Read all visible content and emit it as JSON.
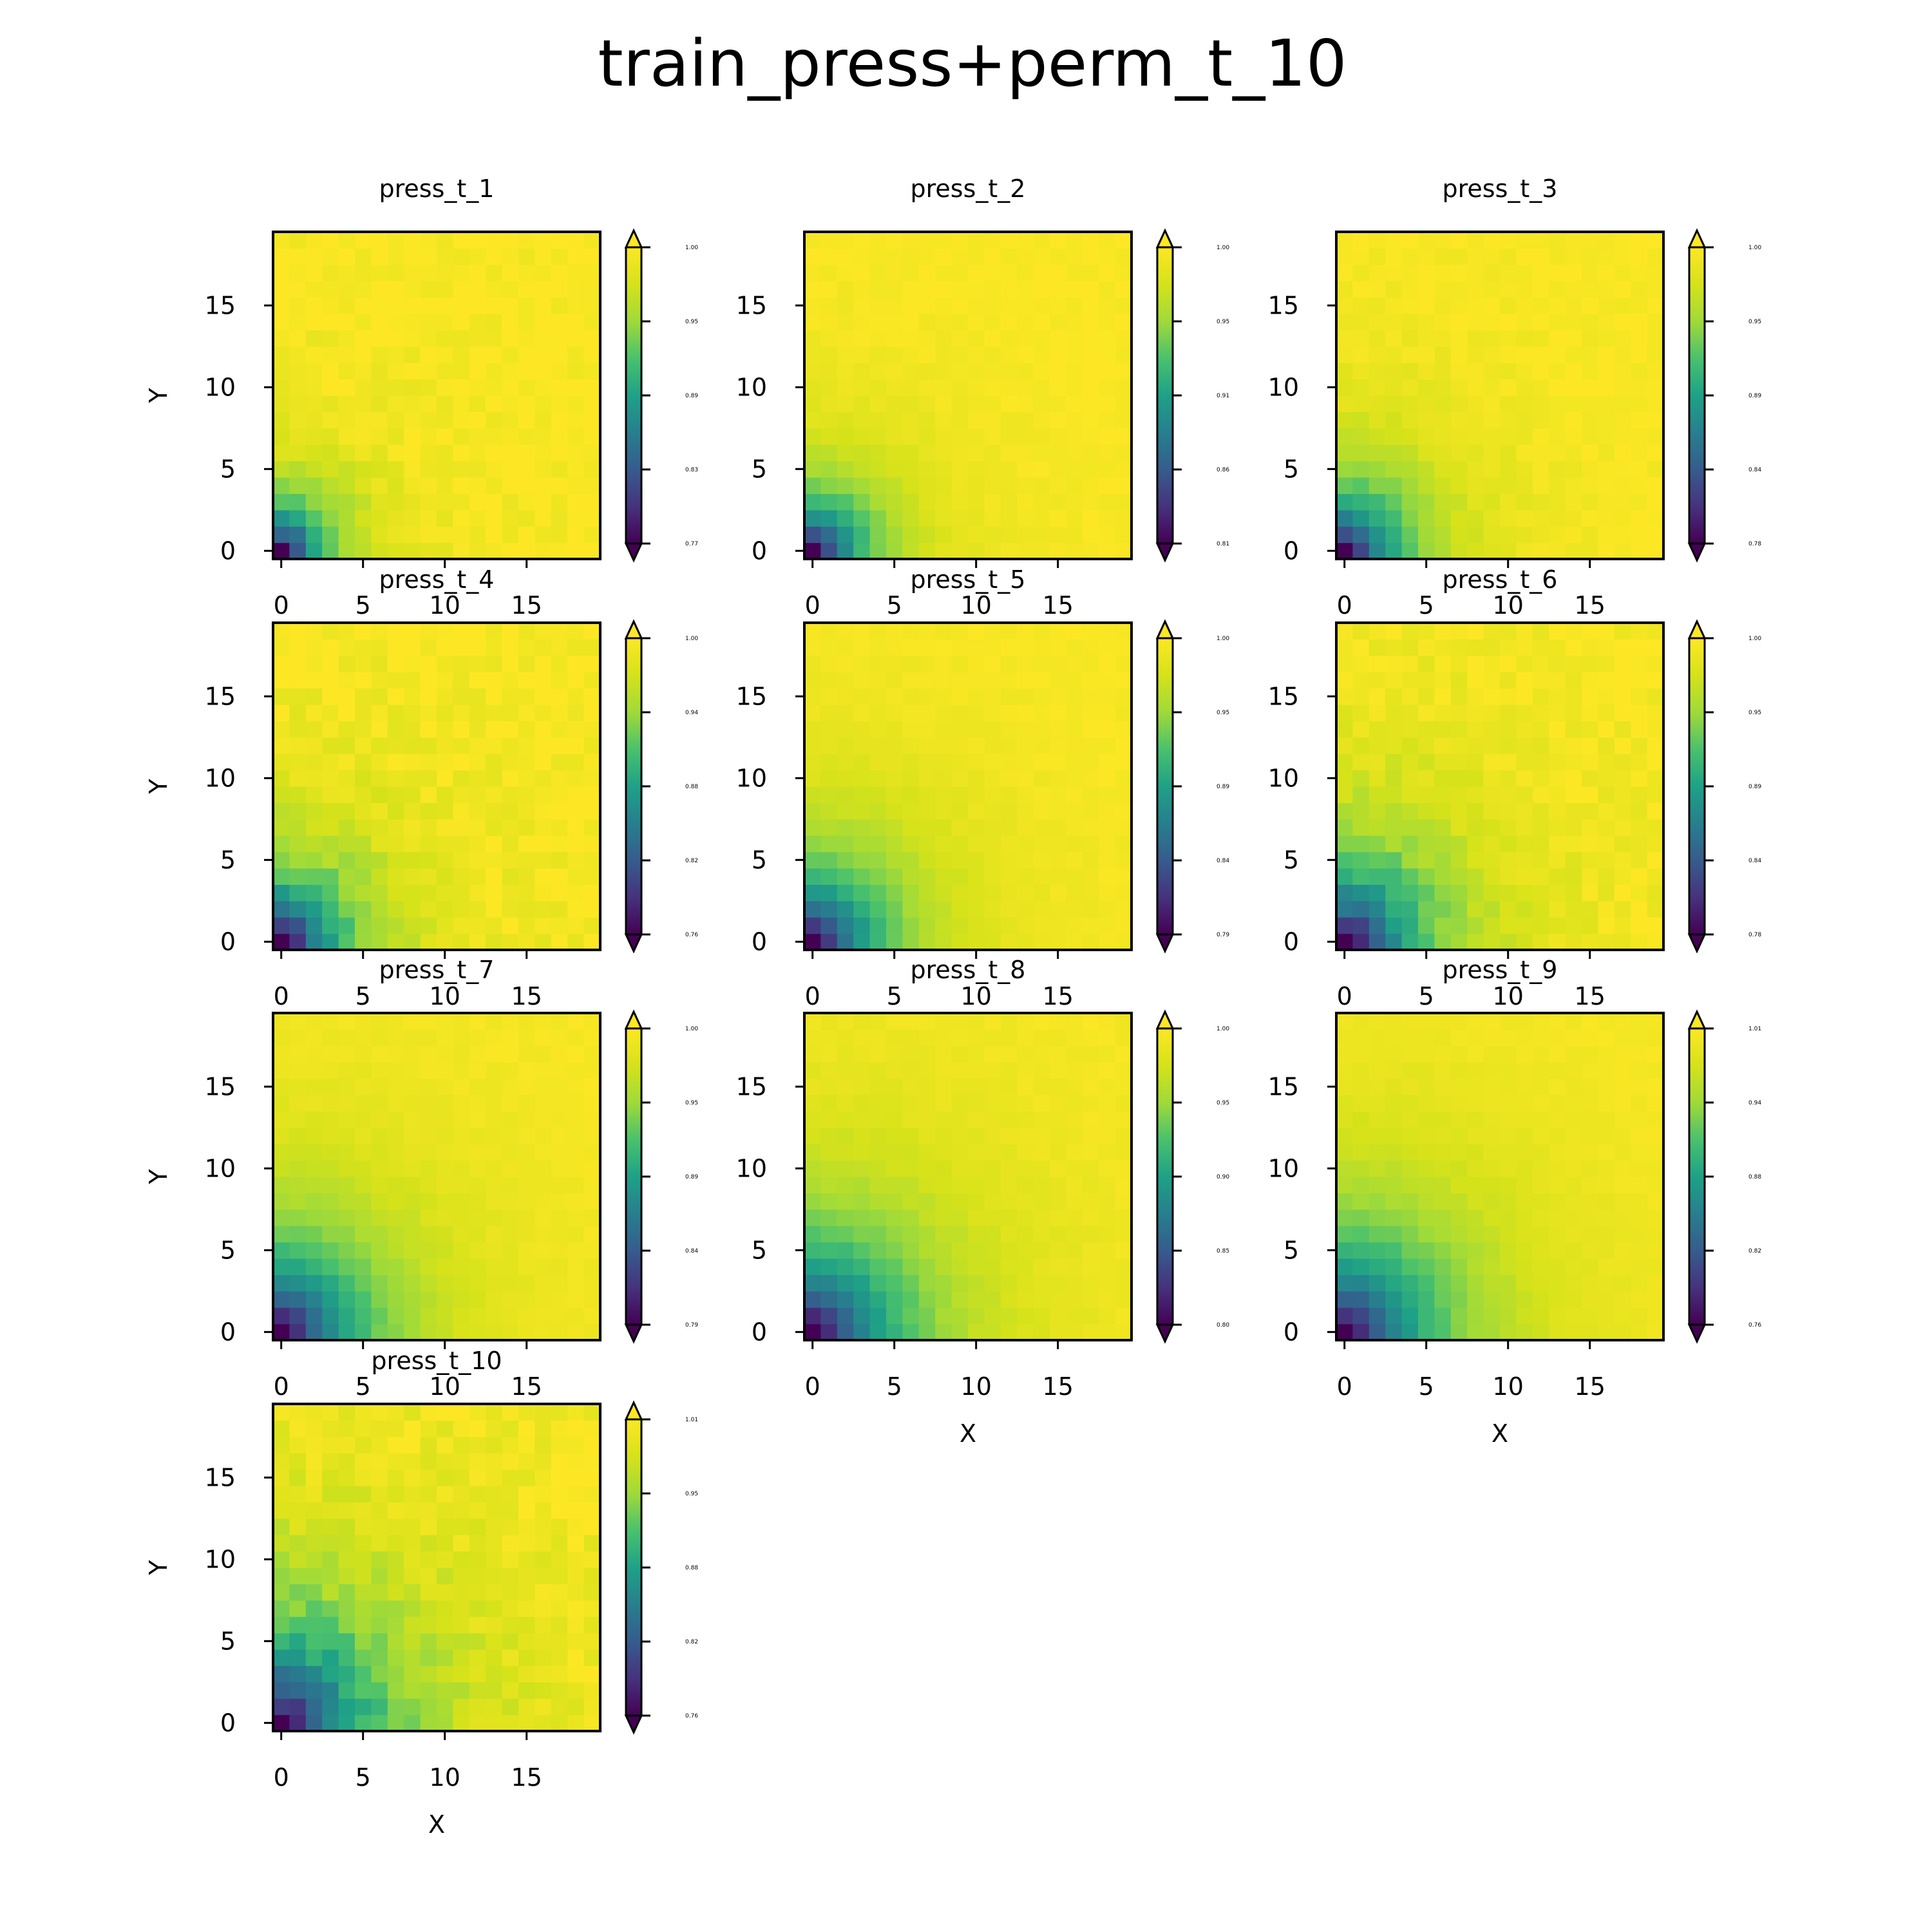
{
  "figure": {
    "title": "train_press+perm_t_10",
    "colormap": "viridis",
    "grid_size": [
      20,
      20
    ]
  },
  "chart_data": [
    {
      "type": "heatmap",
      "title": "press_t_1",
      "xlabel": "",
      "ylabel": "Y",
      "xticks": [
        "0",
        "5",
        "10",
        "15"
      ],
      "yticks": [
        "0",
        "5",
        "10",
        "15"
      ],
      "colorbar_ticks": [
        "0.77",
        "0.83",
        "0.89",
        "0.95",
        "1.00"
      ],
      "vmin": 0.77,
      "vmax": 1.0,
      "pattern": {
        "radius": 3.0,
        "noise": 0.01
      }
    },
    {
      "type": "heatmap",
      "title": "press_t_2",
      "xlabel": "",
      "ylabel": "",
      "xticks": [
        "0",
        "5",
        "10",
        "15"
      ],
      "yticks": [
        "0",
        "5",
        "10",
        "15"
      ],
      "colorbar_ticks": [
        "0.81",
        "0.86",
        "0.91",
        "0.95",
        "1.00"
      ],
      "vmin": 0.81,
      "vmax": 1.0,
      "pattern": {
        "radius": 3.4,
        "noise": 0.004
      }
    },
    {
      "type": "heatmap",
      "title": "press_t_3",
      "xlabel": "",
      "ylabel": "",
      "xticks": [
        "0",
        "5",
        "10",
        "15"
      ],
      "yticks": [
        "0",
        "5",
        "10",
        "15"
      ],
      "colorbar_ticks": [
        "0.78",
        "0.84",
        "0.89",
        "0.95",
        "1.00"
      ],
      "vmin": 0.78,
      "vmax": 1.0,
      "pattern": {
        "radius": 3.8,
        "noise": 0.006
      }
    },
    {
      "type": "heatmap",
      "title": "press_t_4",
      "xlabel": "",
      "ylabel": "Y",
      "xticks": [
        "0",
        "5",
        "10",
        "15"
      ],
      "yticks": [
        "0",
        "5",
        "10",
        "15"
      ],
      "colorbar_ticks": [
        "0.76",
        "0.82",
        "0.88",
        "0.94",
        "1.00"
      ],
      "vmin": 0.76,
      "vmax": 1.0,
      "pattern": {
        "radius": 4.2,
        "noise": 0.012
      }
    },
    {
      "type": "heatmap",
      "title": "press_t_5",
      "xlabel": "",
      "ylabel": "",
      "xticks": [
        "0",
        "5",
        "10",
        "15"
      ],
      "yticks": [
        "0",
        "5",
        "10",
        "15"
      ],
      "colorbar_ticks": [
        "0.79",
        "0.84",
        "0.89",
        "0.95",
        "1.00"
      ],
      "vmin": 0.79,
      "vmax": 1.0,
      "pattern": {
        "radius": 4.6,
        "noise": 0.004
      }
    },
    {
      "type": "heatmap",
      "title": "press_t_6",
      "xlabel": "",
      "ylabel": "",
      "xticks": [
        "0",
        "5",
        "10",
        "15"
      ],
      "yticks": [
        "0",
        "5",
        "10",
        "15"
      ],
      "colorbar_ticks": [
        "0.78",
        "0.84",
        "0.89",
        "0.95",
        "1.00"
      ],
      "vmin": 0.78,
      "vmax": 1.0,
      "pattern": {
        "radius": 5.0,
        "noise": 0.01
      }
    },
    {
      "type": "heatmap",
      "title": "press_t_7",
      "xlabel": "",
      "ylabel": "Y",
      "xticks": [
        "0",
        "5",
        "10",
        "15"
      ],
      "yticks": [
        "0",
        "5",
        "10",
        "15"
      ],
      "colorbar_ticks": [
        "0.79",
        "0.84",
        "0.89",
        "0.95",
        "1.00"
      ],
      "vmin": 0.79,
      "vmax": 1.0,
      "pattern": {
        "radius": 5.4,
        "noise": 0.004
      }
    },
    {
      "type": "heatmap",
      "title": "press_t_8",
      "xlabel": "X",
      "ylabel": "",
      "xticks": [
        "0",
        "5",
        "10",
        "15"
      ],
      "yticks": [
        "0",
        "5",
        "10",
        "15"
      ],
      "colorbar_ticks": [
        "0.80",
        "0.85",
        "0.90",
        "0.95",
        "1.00"
      ],
      "vmin": 0.8,
      "vmax": 1.0,
      "pattern": {
        "radius": 5.8,
        "noise": 0.004
      }
    },
    {
      "type": "heatmap",
      "title": "press_t_9",
      "xlabel": "X",
      "ylabel": "",
      "xticks": [
        "0",
        "5",
        "10",
        "15"
      ],
      "yticks": [
        "0",
        "5",
        "10",
        "15"
      ],
      "colorbar_ticks": [
        "0.76",
        "0.82",
        "0.88",
        "0.94",
        "1.01"
      ],
      "vmin": 0.76,
      "vmax": 1.01,
      "pattern": {
        "radius": 6.0,
        "noise": 0.004
      }
    },
    {
      "type": "heatmap",
      "title": "press_t_10",
      "xlabel": "X",
      "ylabel": "Y",
      "xticks": [
        "0",
        "5",
        "10",
        "15"
      ],
      "yticks": [
        "0",
        "5",
        "10",
        "15"
      ],
      "colorbar_ticks": [
        "0.76",
        "0.82",
        "0.88",
        "0.95",
        "1.01"
      ],
      "vmin": 0.76,
      "vmax": 1.01,
      "pattern": {
        "radius": 6.2,
        "noise": 0.014
      }
    }
  ]
}
